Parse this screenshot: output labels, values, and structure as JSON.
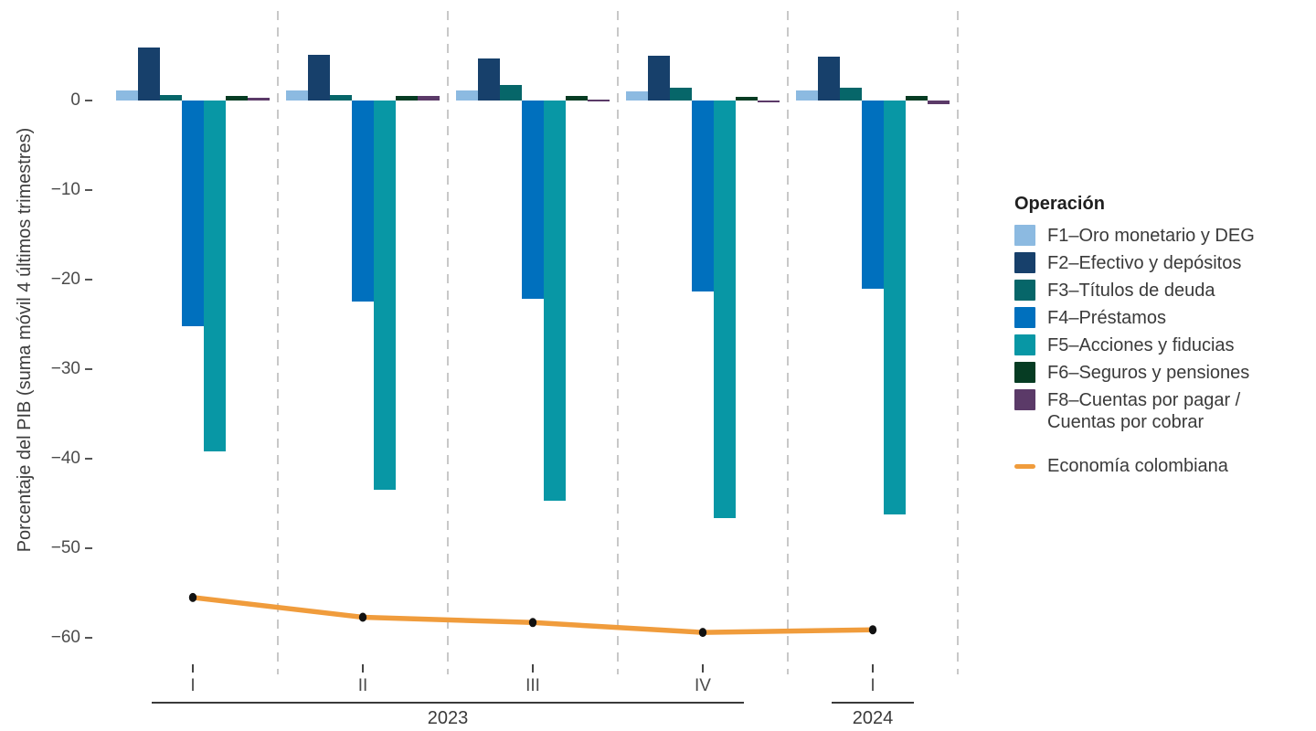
{
  "chart_data": {
    "type": "grouped_bar_with_line",
    "legend_title": "Operación",
    "ylabel": "Porcentaje del PIB (suma móvil 4 últimos trimestres)",
    "categories": [
      "I-2023",
      "II-2023",
      "III-2023",
      "IV-2023",
      "I-2024"
    ],
    "quarter_labels": [
      "I",
      "II",
      "III",
      "IV",
      "I"
    ],
    "year_groups": [
      {
        "label": "2023",
        "from": 0,
        "to": 3
      },
      {
        "label": "2024",
        "from": 4,
        "to": 4
      }
    ],
    "series": [
      {
        "name": "F1–Oro monetario y DEG",
        "color": "#8CBAE1",
        "values": [
          1.1,
          1.1,
          1.1,
          1.0,
          1.1
        ]
      },
      {
        "name": "F2–Efectivo y depósitos",
        "color": "#17406B",
        "values": [
          5.9,
          5.1,
          4.7,
          5.0,
          4.9
        ]
      },
      {
        "name": "F3–Títulos de deuda",
        "color": "#066669",
        "values": [
          0.6,
          0.6,
          1.7,
          1.4,
          1.4
        ]
      },
      {
        "name": "F4–Préstamos",
        "color": "#0070BE",
        "values": [
          -25.2,
          -22.4,
          -22.1,
          -21.3,
          -21.0
        ]
      },
      {
        "name": "F5–Acciones y fiducias",
        "color": "#0897A5",
        "values": [
          -39.2,
          -43.5,
          -44.7,
          -46.6,
          -46.2
        ]
      },
      {
        "name": "F6–Seguros y pensiones",
        "color": "#063C23",
        "values": [
          0.5,
          0.5,
          0.5,
          0.4,
          0.5
        ]
      },
      {
        "name": "F8–Cuentas por pagar / Cuentas por cobrar",
        "color": "#5B3A68",
        "values": [
          0.3,
          0.5,
          0.15,
          -0.15,
          -0.4
        ]
      }
    ],
    "line_series": {
      "name": "Economía colombiana",
      "color": "#F09C3C",
      "point_color": "#121212",
      "values": [
        -55.5,
        -57.7,
        -58.3,
        -59.4,
        -59.1
      ]
    },
    "ylim": [
      -63,
      10
    ],
    "y_major_ticks": [
      0,
      -10,
      -20,
      -30,
      -40,
      -50,
      -60
    ],
    "y_tick_labels": [
      "0",
      "−10",
      "−20",
      "−30",
      "−40",
      "−50",
      "−60"
    ],
    "y_minor_gridlines": [
      5,
      -5,
      -15,
      -25,
      -35,
      -45,
      -55
    ],
    "y_top_gridline": 10,
    "grid": "dashed",
    "legend_position": "right"
  }
}
